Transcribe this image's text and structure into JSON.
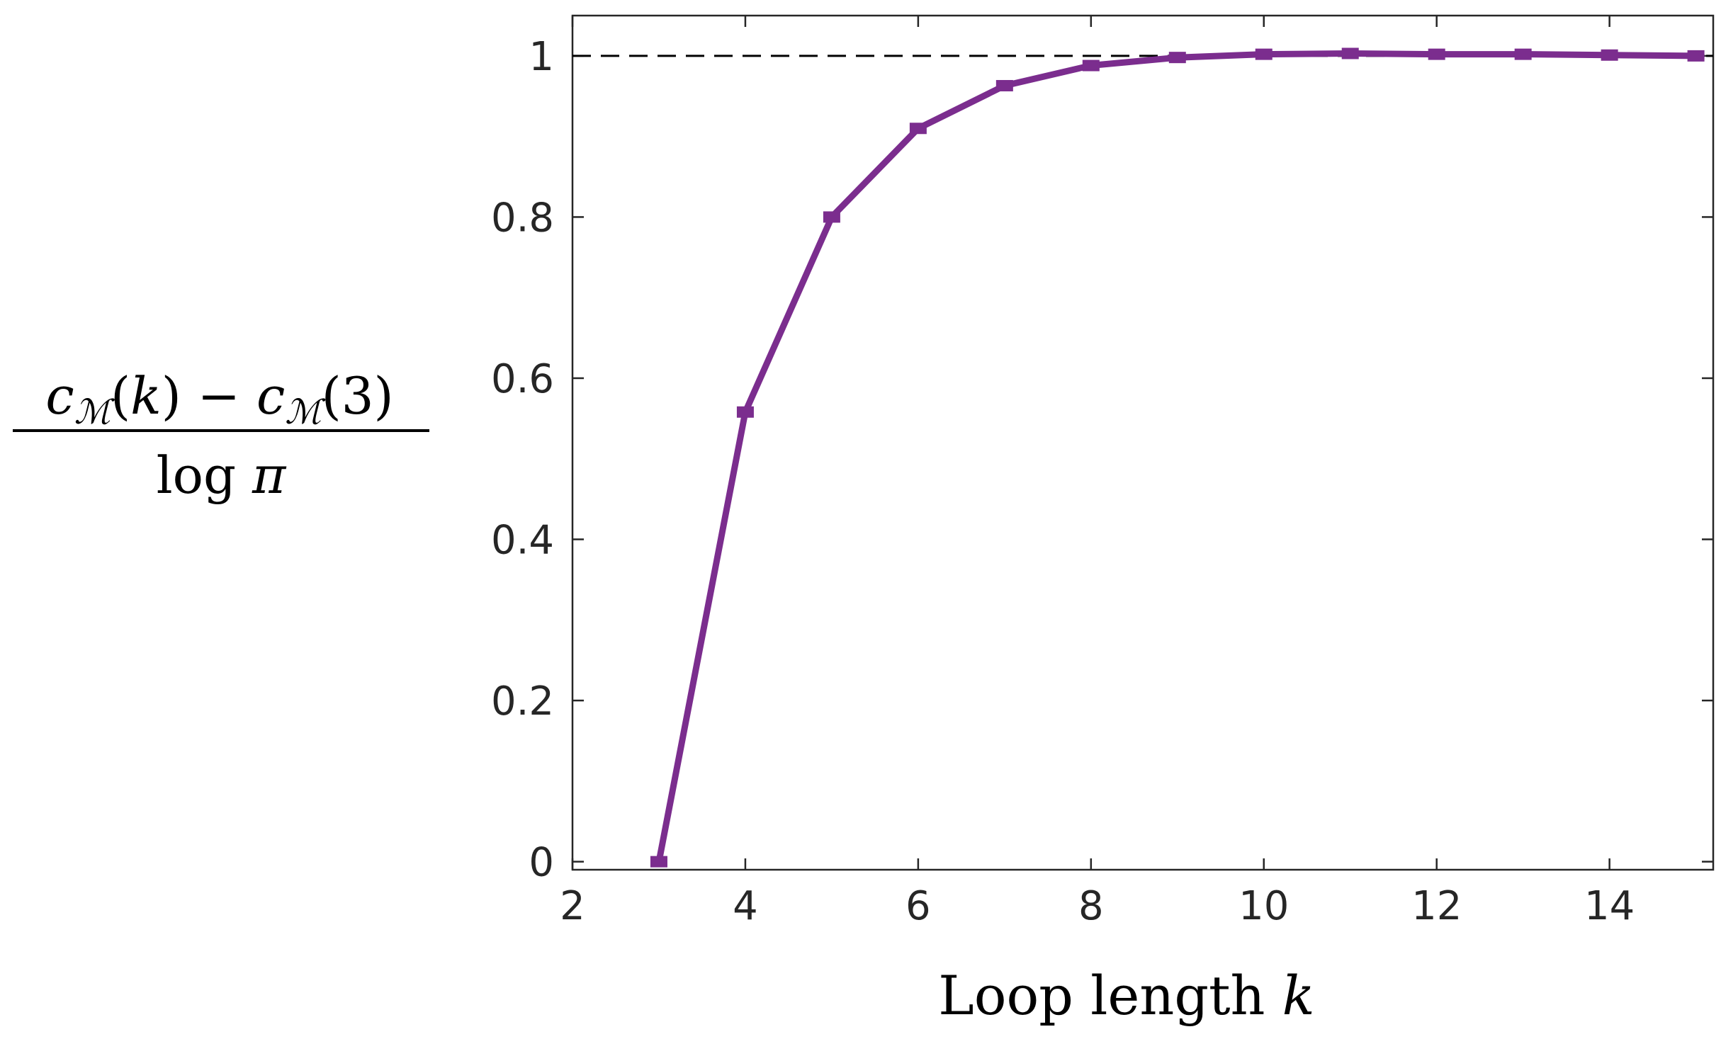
{
  "chart_data": {
    "type": "line",
    "xlabel_text": "Loop length ",
    "xlabel_var": "k",
    "ylabel": {
      "numerator": "c_M(k) − c_M(3)",
      "denominator": "log π"
    },
    "xlim": [
      2,
      15.2
    ],
    "ylim": [
      -0.01,
      1.05
    ],
    "xticks": [
      "2",
      "4",
      "6",
      "8",
      "10",
      "12",
      "14"
    ],
    "yticks": [
      "0",
      "0.2",
      "0.4",
      "0.6",
      "0.8",
      "1"
    ],
    "reference_line": {
      "y": 1,
      "style": "dashed",
      "color": "#000000"
    },
    "series": [
      {
        "color": "#7B2D8E",
        "marker": "square",
        "x": [
          3,
          4,
          5,
          6,
          7,
          8,
          9,
          10,
          11,
          12,
          13,
          14,
          15
        ],
        "y": [
          0,
          0.558,
          0.8,
          0.91,
          0.963,
          0.988,
          0.998,
          1.002,
          1.003,
          1.002,
          1.002,
          1.001,
          1.0
        ]
      }
    ],
    "grid": false,
    "legend": "none"
  }
}
